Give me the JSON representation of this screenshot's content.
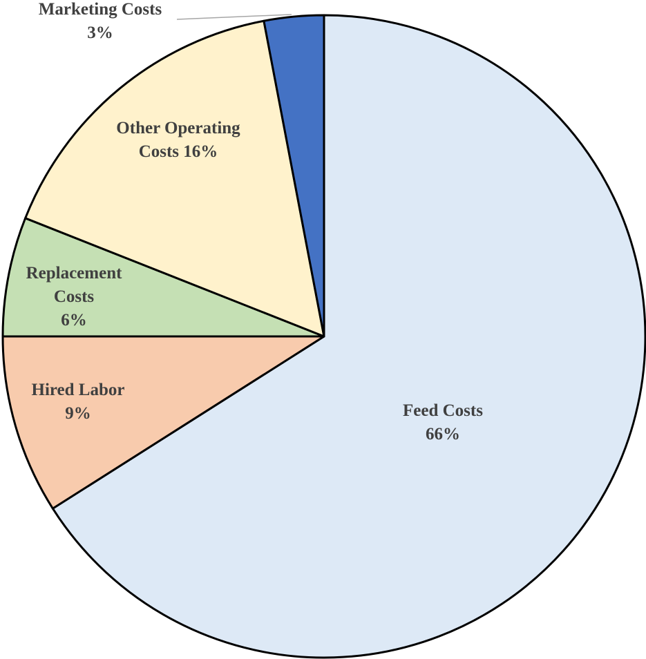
{
  "chart_data": {
    "type": "pie",
    "categories": [
      "Feed Costs",
      "Hired Labor",
      "Replacement Costs",
      "Other Operating Costs",
      "Marketing Costs"
    ],
    "values": [
      66,
      9,
      6,
      16,
      3
    ],
    "value_labels": [
      "66%",
      "9%",
      "6%",
      "16%",
      "3%"
    ],
    "colors": [
      "#dde9f6",
      "#f8cbad",
      "#c5e0b4",
      "#fff2cc",
      "#4472c4"
    ]
  }
}
